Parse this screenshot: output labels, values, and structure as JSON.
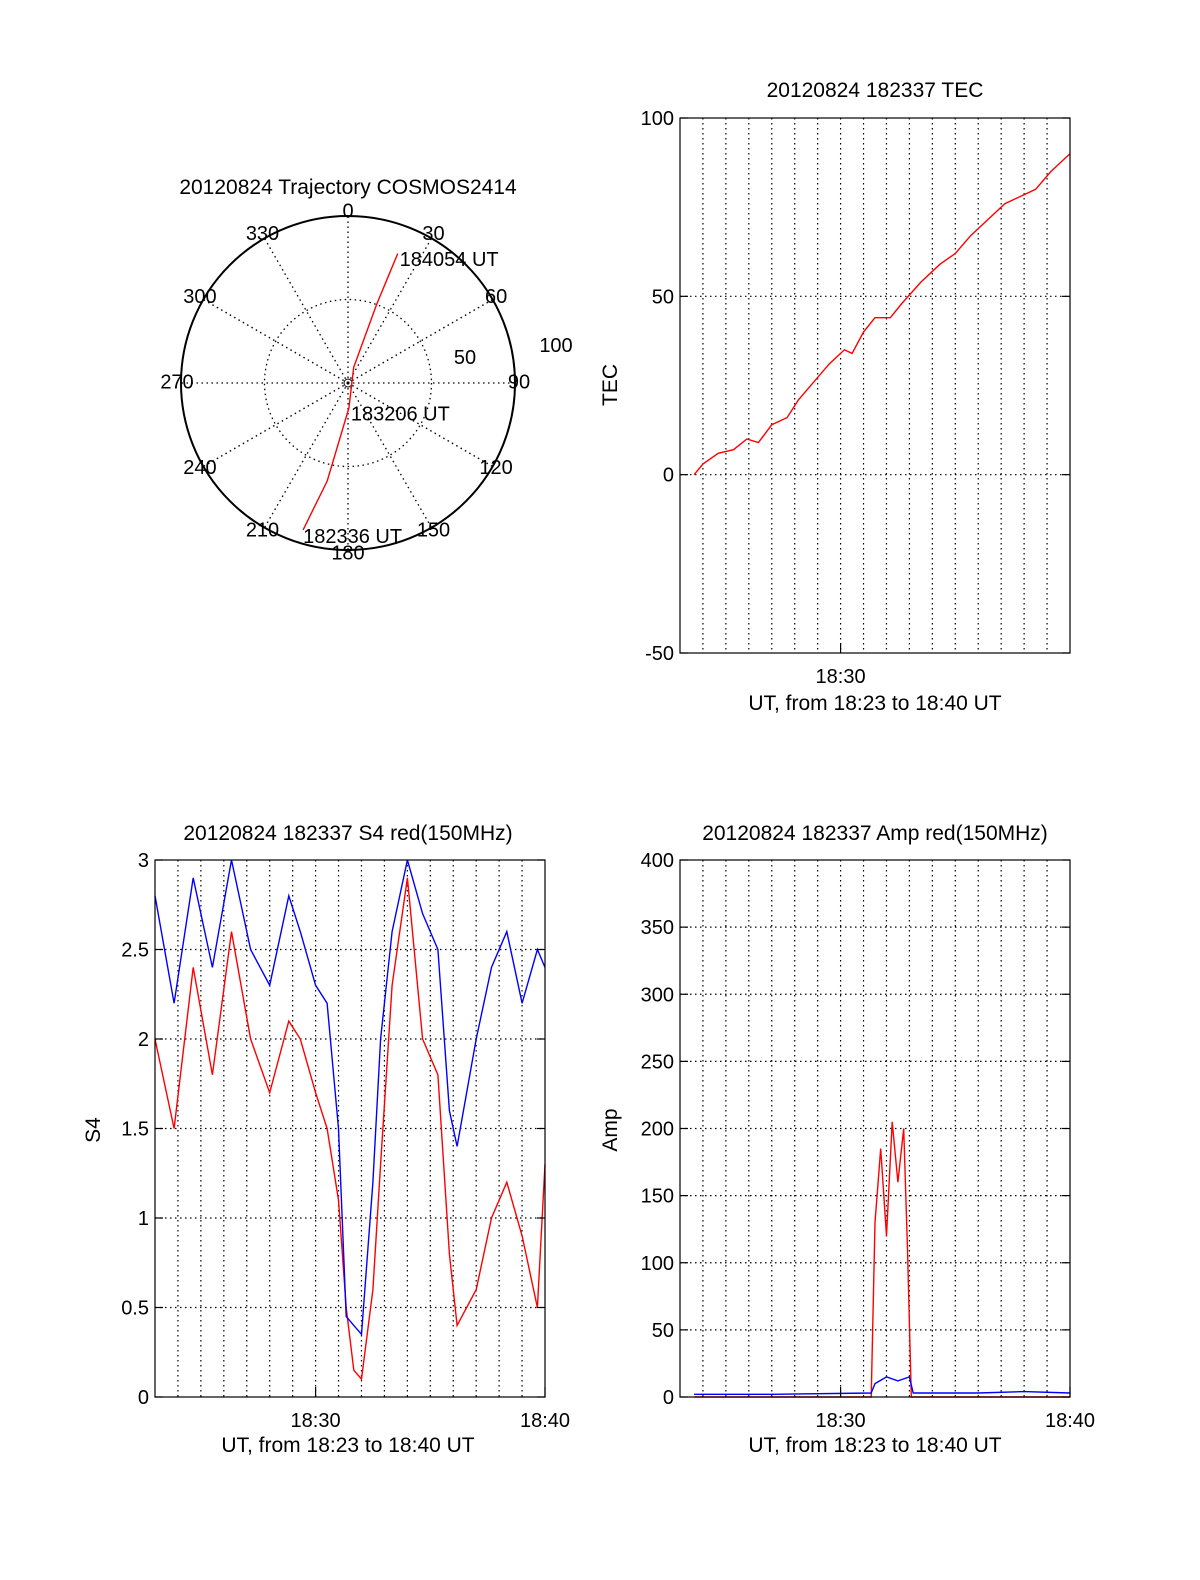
{
  "colors": {
    "red": "#ff0000",
    "blue": "#0000ff",
    "axis": "#000000",
    "grid": "#000000"
  },
  "chart_data": [
    {
      "id": "trajectory",
      "type": "polar",
      "title": "20120824 Trajectory COSMOS2414",
      "azimuth_labels": [
        "0",
        "30",
        "60",
        "90",
        "120",
        "150",
        "180",
        "210",
        "240",
        "270",
        "300",
        "330"
      ],
      "azimuth_values": [
        0,
        30,
        60,
        90,
        120,
        150,
        180,
        210,
        240,
        270,
        300,
        330
      ],
      "radial_labels": [
        "50",
        "100"
      ],
      "radial_values": [
        50,
        100
      ],
      "rmax": 100,
      "grid": true,
      "series": [
        {
          "color": "red",
          "points": [
            {
              "az": 197,
              "r": 92
            },
            {
              "az": 192,
              "r": 60
            },
            {
              "az": 178,
              "r": 15
            },
            {
              "az": 20,
              "r": 10
            },
            {
              "az": 20,
              "r": 50
            },
            {
              "az": 21,
              "r": 83
            }
          ]
        }
      ],
      "annotations": [
        {
          "text": "184054 UT",
          "az": 21,
          "r": 83
        },
        {
          "text": "183206 UT",
          "az": 178,
          "r": 15
        },
        {
          "text": "182336 UT",
          "az": 197,
          "r": 92
        }
      ]
    },
    {
      "id": "tec",
      "type": "line",
      "title": "20120824 182337 TEC",
      "ylabel": "TEC",
      "xlabel": "UT, from 18:23 to 18:40 UT",
      "xlim": [
        "18:23",
        "18:40"
      ],
      "ylim": [
        -50,
        100
      ],
      "yticks": [
        "100",
        "50",
        "0",
        "-50"
      ],
      "ytick_values": [
        100,
        50,
        0,
        -50
      ],
      "xticks": [
        "18:30"
      ],
      "xtick_values": [
        "18:30"
      ],
      "grid": true,
      "series": [
        {
          "color": "red",
          "points": [
            [
              "18:23:37",
              0
            ],
            [
              "18:24:00",
              3
            ],
            [
              "18:24:40",
              6
            ],
            [
              "18:25:20",
              7
            ],
            [
              "18:25:55",
              10
            ],
            [
              "18:26:25",
              9
            ],
            [
              "18:27:00",
              14
            ],
            [
              "18:27:40",
              16
            ],
            [
              "18:28:10",
              21
            ],
            [
              "18:28:50",
              26
            ],
            [
              "18:29:30",
              31
            ],
            [
              "18:30:10",
              35
            ],
            [
              "18:30:30",
              34
            ],
            [
              "18:31:00",
              40
            ],
            [
              "18:31:30",
              44
            ],
            [
              "18:32:10",
              44
            ],
            [
              "18:32:40",
              48
            ],
            [
              "18:33:30",
              54
            ],
            [
              "18:34:20",
              59
            ],
            [
              "18:35:00",
              62
            ],
            [
              "18:35:40",
              67
            ],
            [
              "18:36:30",
              72
            ],
            [
              "18:37:10",
              76
            ],
            [
              "18:37:50",
              78
            ],
            [
              "18:38:30",
              80
            ],
            [
              "18:39:10",
              85
            ],
            [
              "18:39:40",
              88
            ],
            [
              "18:40:00",
              90
            ]
          ]
        }
      ]
    },
    {
      "id": "s4",
      "type": "line",
      "title": "20120824 182337 S4 red(150MHz)",
      "ylabel": "S4",
      "xlabel": "UT, from 18:23 to 18:40 UT",
      "xlim": [
        "18:23",
        "18:40"
      ],
      "ylim": [
        0,
        3
      ],
      "yticks": [
        "3",
        "2.5",
        "2",
        "1.5",
        "1",
        "0.5",
        "0"
      ],
      "ytick_values": [
        3,
        2.5,
        2,
        1.5,
        1,
        0.5,
        0
      ],
      "xticks": [
        "18:30",
        "18:40"
      ],
      "xtick_values": [
        "18:30",
        "18:40"
      ],
      "grid": true,
      "series": [
        {
          "color": "red",
          "points": [
            [
              "18:23:00",
              2.0
            ],
            [
              "18:23:50",
              1.5
            ],
            [
              "18:24:40",
              2.4
            ],
            [
              "18:25:30",
              1.8
            ],
            [
              "18:26:20",
              2.6
            ],
            [
              "18:27:10",
              2.0
            ],
            [
              "18:28:00",
              1.7
            ],
            [
              "18:28:50",
              2.1
            ],
            [
              "18:29:20",
              2.0
            ],
            [
              "18:30:00",
              1.7
            ],
            [
              "18:30:30",
              1.5
            ],
            [
              "18:31:00",
              1.1
            ],
            [
              "18:31:20",
              0.5
            ],
            [
              "18:31:40",
              0.15
            ],
            [
              "18:32:00",
              0.1
            ],
            [
              "18:32:30",
              0.6
            ],
            [
              "18:32:50",
              1.3
            ],
            [
              "18:33:20",
              2.3
            ],
            [
              "18:34:00",
              2.9
            ],
            [
              "18:34:40",
              2.0
            ],
            [
              "18:35:20",
              1.8
            ],
            [
              "18:35:50",
              0.8
            ],
            [
              "18:36:10",
              0.4
            ],
            [
              "18:37:00",
              0.6
            ],
            [
              "18:37:40",
              1.0
            ],
            [
              "18:38:20",
              1.2
            ],
            [
              "18:39:00",
              0.9
            ],
            [
              "18:39:40",
              0.5
            ],
            [
              "18:40:00",
              1.3
            ]
          ]
        },
        {
          "color": "blue",
          "points": [
            [
              "18:23:00",
              2.8
            ],
            [
              "18:23:50",
              2.2
            ],
            [
              "18:24:40",
              2.9
            ],
            [
              "18:25:30",
              2.4
            ],
            [
              "18:26:20",
              3.0
            ],
            [
              "18:27:10",
              2.5
            ],
            [
              "18:28:00",
              2.3
            ],
            [
              "18:28:50",
              2.8
            ],
            [
              "18:29:20",
              2.6
            ],
            [
              "18:30:00",
              2.3
            ],
            [
              "18:30:30",
              2.2
            ],
            [
              "18:31:00",
              1.5
            ],
            [
              "18:31:20",
              0.45
            ],
            [
              "18:31:40",
              0.4
            ],
            [
              "18:32:00",
              0.35
            ],
            [
              "18:32:30",
              1.2
            ],
            [
              "18:32:50",
              2.0
            ],
            [
              "18:33:20",
              2.6
            ],
            [
              "18:34:00",
              3.0
            ],
            [
              "18:34:40",
              2.7
            ],
            [
              "18:35:20",
              2.5
            ],
            [
              "18:35:50",
              1.6
            ],
            [
              "18:36:10",
              1.4
            ],
            [
              "18:37:00",
              2.0
            ],
            [
              "18:37:40",
              2.4
            ],
            [
              "18:38:20",
              2.6
            ],
            [
              "18:39:00",
              2.2
            ],
            [
              "18:39:40",
              2.5
            ],
            [
              "18:40:00",
              2.4
            ]
          ]
        }
      ]
    },
    {
      "id": "amp",
      "type": "line",
      "title": "20120824 182337 Amp red(150MHz)",
      "ylabel": "Amp",
      "xlabel": "UT, from 18:23 to 18:40 UT",
      "xlim": [
        "18:23",
        "18:40"
      ],
      "ylim": [
        0,
        400
      ],
      "yticks": [
        "400",
        "350",
        "300",
        "250",
        "200",
        "150",
        "100",
        "50",
        "0"
      ],
      "ytick_values": [
        400,
        350,
        300,
        250,
        200,
        150,
        100,
        50,
        0
      ],
      "xticks": [
        "18:30",
        "18:40"
      ],
      "xtick_values": [
        "18:30",
        "18:40"
      ],
      "grid": true,
      "series": [
        {
          "color": "red",
          "points": [
            [
              "18:23:37",
              0
            ],
            [
              "18:31:20",
              0
            ],
            [
              "18:31:30",
              130
            ],
            [
              "18:31:45",
              185
            ],
            [
              "18:32:00",
              120
            ],
            [
              "18:32:15",
              205
            ],
            [
              "18:32:30",
              160
            ],
            [
              "18:32:45",
              200
            ],
            [
              "18:32:55",
              110
            ],
            [
              "18:33:05",
              0
            ],
            [
              "18:40:00",
              0
            ]
          ]
        },
        {
          "color": "blue",
          "points": [
            [
              "18:23:37",
              2
            ],
            [
              "18:27:00",
              2
            ],
            [
              "18:31:20",
              3
            ],
            [
              "18:31:30",
              10
            ],
            [
              "18:32:00",
              15
            ],
            [
              "18:32:30",
              12
            ],
            [
              "18:33:00",
              15
            ],
            [
              "18:33:10",
              3
            ],
            [
              "18:36:00",
              3
            ],
            [
              "18:38:00",
              4
            ],
            [
              "18:40:00",
              3
            ]
          ]
        }
      ]
    }
  ]
}
